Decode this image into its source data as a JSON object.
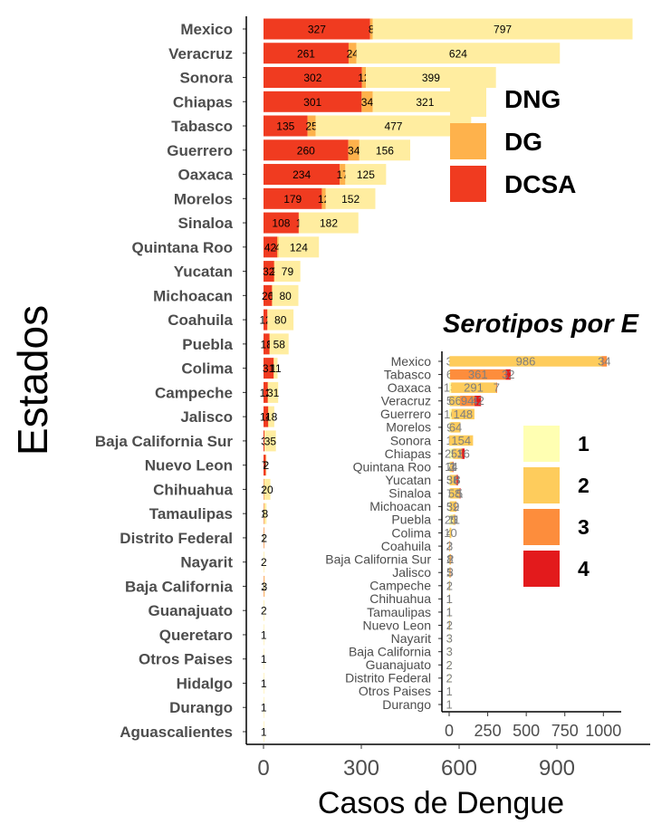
{
  "chart_data": [
    {
      "type": "bar",
      "orientation": "horizontal",
      "stacked": true,
      "title": "",
      "xlabel": "Casos de Dengue",
      "ylabel": "Estados",
      "xlim": [
        -40,
        1150
      ],
      "xticks": [
        0,
        300,
        600,
        900
      ],
      "legend_position": "top-right",
      "categories": [
        "Mexico",
        "Veracruz",
        "Sonora",
        "Chiapas",
        "Tabasco",
        "Guerrero",
        "Oaxaca",
        "Morelos",
        "Sinaloa",
        "Quintana Roo",
        "Yucatan",
        "Michoacan",
        "Coahuila",
        "Puebla",
        "Colima",
        "Campeche",
        "Jalisco",
        "Baja California Sur",
        "Nuevo Leon",
        "Chihuahua",
        "Tamaulipas",
        "Distrito Federal",
        "Nayarit",
        "Baja California",
        "Guanajuato",
        "Queretaro",
        "Otros Paises",
        "Hidalgo",
        "Durango",
        "Aguascalientes"
      ],
      "series": [
        {
          "name": "DCSA",
          "color": "#f03b20",
          "values": [
            327,
            261,
            302,
            301,
            135,
            260,
            234,
            179,
            108,
            42,
            32,
            26,
            12,
            18,
            31,
            13,
            14,
            3,
            7,
            1,
            1,
            1,
            0,
            1,
            0,
            0,
            0,
            0,
            0,
            0
          ],
          "labels": [
            "327",
            "261",
            "302",
            "301",
            "135",
            "260",
            "234",
            "179",
            "108",
            "42",
            "32",
            "26",
            "12",
            "18",
            "31",
            "13",
            "14",
            "3",
            "7",
            "1",
            "1",
            "1",
            "",
            "1",
            "",
            "",
            "",
            "",
            "",
            ""
          ]
        },
        {
          "name": "DG",
          "color": "#feb24c",
          "values": [
            8,
            24,
            12,
            34,
            25,
            34,
            17,
            12,
            1,
            4,
            2,
            1,
            0,
            1,
            1,
            1,
            1,
            0,
            0,
            0,
            0,
            0,
            0,
            0,
            0,
            0,
            0,
            0,
            0,
            0
          ],
          "labels": [
            "8",
            "24",
            "12",
            "34",
            "25",
            "34",
            "17",
            "12",
            "1",
            "4",
            "2",
            "1",
            "",
            "1",
            "1",
            "1",
            "1",
            "",
            "",
            "",
            "",
            "",
            "",
            "",
            "",
            "",
            "",
            "",
            "",
            ""
          ]
        },
        {
          "name": "DNG",
          "color": "#ffeda0",
          "values": [
            797,
            624,
            399,
            321,
            477,
            156,
            125,
            152,
            182,
            124,
            79,
            80,
            80,
            58,
            11,
            31,
            18,
            35,
            2,
            20,
            8,
            2,
            2,
            3,
            2,
            1,
            1,
            1,
            1,
            1
          ],
          "labels": [
            "797",
            "624",
            "399",
            "321",
            "477",
            "156",
            "125",
            "152",
            "182",
            "124",
            "79",
            "80",
            "80",
            "58",
            "11",
            "31",
            "18",
            "35",
            "2",
            "20",
            "8",
            "2",
            "2",
            "3",
            "2",
            "1",
            "1",
            "1",
            "1",
            "1"
          ]
        }
      ]
    },
    {
      "type": "bar",
      "orientation": "horizontal",
      "stacked": true,
      "title": "Serotipos por E",
      "xlabel": "",
      "ylabel": "",
      "xlim": [
        -10,
        1080
      ],
      "xticks": [
        0,
        250,
        500,
        750,
        1000
      ],
      "legend_position": "right",
      "categories": [
        "Mexico",
        "Tabasco",
        "Oaxaca",
        "Veracruz",
        "Guerrero",
        "Morelos",
        "Sonora",
        "Chiapas",
        "Quintana Roo",
        "Yucatan",
        "Sinaloa",
        "Michoacan",
        "Puebla",
        "Colima",
        "Coahuila",
        "Baja California Sur",
        "Jalisco",
        "Campeche",
        "Chihuahua",
        "Tamaulipas",
        "Nuevo Leon",
        "Nayarit",
        "Baja California",
        "Guanajuato",
        "Distrito Federal",
        "Otros Paises",
        "Durango"
      ],
      "series": [
        {
          "name": "1",
          "color": "#ffffb2",
          "values": [
            3,
            6,
            13,
            5,
            16,
            9,
            1,
            26,
            7,
            5,
            7,
            5,
            25,
            4,
            2,
            1,
            1,
            1,
            1,
            1,
            1,
            3,
            3,
            2,
            2,
            1,
            1
          ],
          "labels": [
            "3",
            "6",
            "13",
            "5",
            "16",
            "9",
            "1",
            "26",
            "7",
            "5",
            "7",
            "5",
            "25",
            "4",
            "2",
            "1",
            "1",
            "1",
            "1",
            "1",
            "1",
            "3",
            "3",
            "2",
            "2",
            "1",
            "1"
          ]
        },
        {
          "name": "2",
          "color": "#fecc5c",
          "values": [
            986,
            0,
            291,
            66,
            148,
            64,
            154,
            53,
            14,
            38,
            58,
            39,
            11,
            10,
            0,
            8,
            5,
            2,
            1,
            1,
            2,
            0,
            0,
            0,
            0,
            0,
            0
          ],
          "labels": [
            "986",
            "",
            "291",
            "66",
            "148",
            "64",
            "154",
            "53",
            "14",
            "38",
            "58",
            "39",
            "11",
            "10",
            "",
            "8",
            "5",
            "2",
            "1",
            "1",
            "2",
            "",
            "",
            "",
            "",
            "",
            ""
          ]
        },
        {
          "name": "3",
          "color": "#fd8d3c",
          "values": [
            34,
            361,
            7,
            94,
            0,
            0,
            0,
            5,
            3,
            6,
            5,
            2,
            1,
            0,
            3,
            2,
            3,
            0,
            0,
            0,
            0,
            0,
            0,
            0,
            0,
            0,
            0
          ],
          "labels": [
            "34",
            "361",
            "7",
            "94",
            "",
            "",
            "",
            "5",
            "3",
            "6",
            "5",
            "2",
            "1",
            "",
            "3",
            "2",
            "3",
            "",
            "",
            "",
            "",
            "",
            "",
            "",
            "",
            "",
            ""
          ]
        },
        {
          "name": "4",
          "color": "#e31a1c",
          "values": [
            0,
            32,
            0,
            42,
            0,
            0,
            0,
            16,
            1,
            8,
            1,
            0,
            0,
            0,
            0,
            0,
            0,
            0,
            0,
            0,
            0,
            0,
            0,
            0,
            0,
            0,
            0
          ],
          "labels": [
            "",
            "32",
            "",
            "42",
            "",
            "",
            "",
            "16",
            "1",
            "8",
            "1",
            "",
            "",
            "",
            "",
            "",
            "",
            "",
            "",
            "",
            "",
            "",
            "",
            "",
            "",
            "",
            ""
          ]
        }
      ]
    }
  ]
}
